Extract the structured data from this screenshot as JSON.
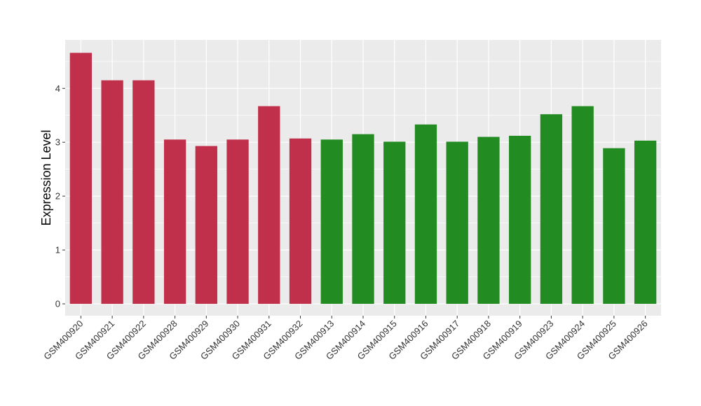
{
  "chart_data": {
    "type": "bar",
    "title": "",
    "xlabel": "",
    "ylabel": "Expression Level",
    "ylim": [
      -0.22,
      4.9
    ],
    "yticks": [
      0,
      1,
      2,
      3,
      4
    ],
    "grid": true,
    "legend": "none",
    "categories": [
      "GSM400920",
      "GSM400921",
      "GSM400922",
      "GSM400928",
      "GSM400929",
      "GSM400930",
      "GSM400931",
      "GSM400932",
      "GSM400913",
      "GSM400914",
      "GSM400915",
      "GSM400916",
      "GSM400917",
      "GSM400918",
      "GSM400919",
      "GSM400923",
      "GSM400924",
      "GSM400925",
      "GSM400926"
    ],
    "values": [
      4.66,
      4.15,
      4.15,
      3.05,
      2.93,
      3.05,
      3.67,
      3.07,
      3.05,
      3.15,
      3.01,
      3.33,
      3.01,
      3.1,
      3.12,
      3.52,
      3.67,
      2.89,
      3.03
    ],
    "bar_colors": [
      "#C0304A",
      "#C0304A",
      "#C0304A",
      "#C0304A",
      "#C0304A",
      "#C0304A",
      "#C0304A",
      "#C0304A",
      "#228B22",
      "#228B22",
      "#228B22",
      "#228B22",
      "#228B22",
      "#228B22",
      "#228B22",
      "#228B22",
      "#228B22",
      "#228B22",
      "#228B22"
    ],
    "panel_color": "#EBEBEB",
    "grid_color": "#FFFFFF"
  }
}
